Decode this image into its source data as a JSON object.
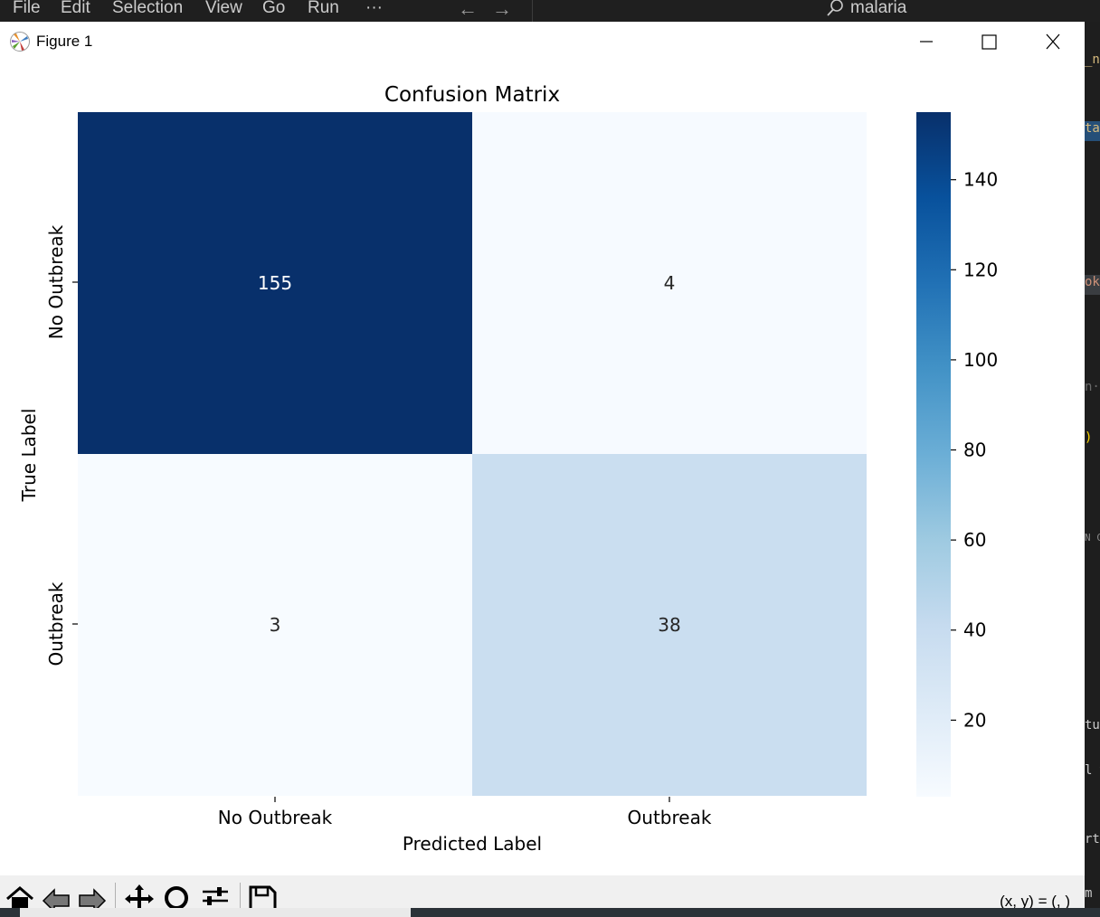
{
  "vscode": {
    "menu": [
      "File",
      "Edit",
      "Selection",
      "View",
      "Go",
      "Run",
      "···"
    ],
    "search_text": "malaria"
  },
  "window": {
    "title": "Figure 1"
  },
  "toolbar": {
    "coords": "(x, y) = (, )"
  },
  "chart_data": {
    "type": "heatmap",
    "title": "Confusion Matrix",
    "xlabel": "Predicted Label",
    "ylabel": "True Label",
    "x_categories": [
      "No Outbreak",
      "Outbreak"
    ],
    "y_categories": [
      "No Outbreak",
      "Outbreak"
    ],
    "values": [
      [
        155,
        4
      ],
      [
        3,
        38
      ]
    ],
    "colormap": "Blues",
    "colorbar": {
      "min": 3,
      "max": 155,
      "ticks": [
        20,
        40,
        60,
        80,
        100,
        120,
        140
      ]
    },
    "colors": {
      "high": "#08306b",
      "low": "#f7fbff",
      "mid_light": "#cadeef",
      "text_on_dark": "#ffffff",
      "text_on_light": "#262626"
    }
  }
}
